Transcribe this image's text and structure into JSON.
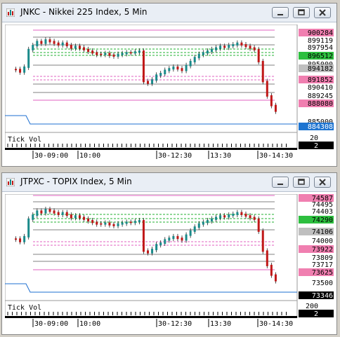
{
  "windows": [
    {
      "title": "JNKC - Nikkei 225 Index, 5 Min",
      "price_labels": [
        {
          "text": "900284",
          "bg": "#f07fb0"
        },
        {
          "text": "899119",
          "bg": ""
        },
        {
          "text": "897954",
          "bg": ""
        },
        {
          "text": "896512",
          "bg": "#2dbf3f"
        },
        {
          "text": "895000",
          "bg": ""
        },
        {
          "text": "894182",
          "bg": "#bfbfbf"
        },
        {
          "text": "891852",
          "bg": "#f07fb0"
        },
        {
          "text": "890410",
          "bg": ""
        },
        {
          "text": "889245",
          "bg": ""
        },
        {
          "text": "888080",
          "bg": "#f07fb0"
        },
        {
          "text": "885000",
          "bg": ""
        },
        {
          "text": "884308",
          "bg": "#1e74d0"
        }
      ],
      "tick_vol_label": "Tick Vol",
      "vol_value": "20",
      "vol_current": "2",
      "time_labels": [
        "30-09:00",
        "10:00",
        "30-12:30",
        "13:30",
        "30-14:30"
      ]
    },
    {
      "title": "JTPXC - TOPIX Index, 5 Min",
      "price_labels": [
        {
          "text": "74587",
          "bg": "#f07fb0"
        },
        {
          "text": "74495",
          "bg": ""
        },
        {
          "text": "74403",
          "bg": ""
        },
        {
          "text": "74290",
          "bg": "#2dbf3f"
        },
        {
          "text": "74106",
          "bg": "#bfbfbf"
        },
        {
          "text": "74000",
          "bg": ""
        },
        {
          "text": "73922",
          "bg": "#f07fb0"
        },
        {
          "text": "73809",
          "bg": ""
        },
        {
          "text": "73717",
          "bg": ""
        },
        {
          "text": "73625",
          "bg": "#f07fb0"
        },
        {
          "text": "73500",
          "bg": ""
        },
        {
          "text": "73346",
          "bg": "#000000"
        }
      ],
      "tick_vol_label": "Tick Vol",
      "vol_value": "200",
      "vol_current": "2",
      "time_labels": [
        "30-09:00",
        "10:00",
        "30-12:30",
        "13:30",
        "30-14:30"
      ]
    }
  ],
  "colors": {
    "pink_line": "#e060c0",
    "green_line": "#20b030",
    "gray_line": "#808080",
    "blue_line": "#1e6fd0",
    "bull": "#1a8a8a",
    "bear": "#c01818"
  },
  "icons": [
    "chart-icon",
    "minimize-icon",
    "restore-icon",
    "close-icon"
  ]
}
